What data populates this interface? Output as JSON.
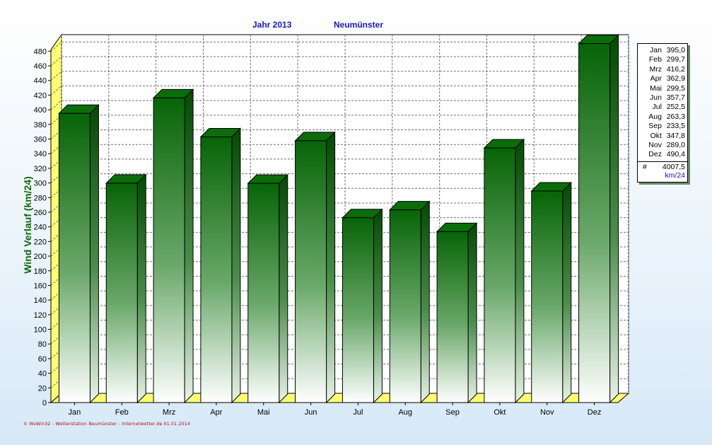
{
  "header": {
    "year_label": "Jahr  2013",
    "station": "Neumünster"
  },
  "footer": "© WsWin32 - Wetterstation Neumünster - Internetwetter.de 01.01.2014",
  "legend": {
    "hash": "#",
    "total": "4007,5",
    "unit": "km/24",
    "rows": [
      {
        "m": "Jan",
        "v": "395,0"
      },
      {
        "m": "Feb",
        "v": "299,7"
      },
      {
        "m": "Mrz",
        "v": "416,2"
      },
      {
        "m": "Apr",
        "v": "362,9"
      },
      {
        "m": "Mai",
        "v": "299,5"
      },
      {
        "m": "Jun",
        "v": "357,7"
      },
      {
        "m": "Jul",
        "v": "252,5"
      },
      {
        "m": "Aug",
        "v": "263,3"
      },
      {
        "m": "Sep",
        "v": "233,5"
      },
      {
        "m": "Okt",
        "v": "347,8"
      },
      {
        "m": "Nov",
        "v": "289,0"
      },
      {
        "m": "Dez",
        "v": "490,4"
      }
    ]
  },
  "chart_data": {
    "type": "bar",
    "title": "Jahr  2013",
    "subtitle": "Neumünster",
    "ylabel": "Wind Verlauf  (km/24)",
    "xlabel": "",
    "categories": [
      "Jan",
      "Feb",
      "Mrz",
      "Apr",
      "Mai",
      "Jun",
      "Jul",
      "Aug",
      "Sep",
      "Okt",
      "Nov",
      "Dez"
    ],
    "values": [
      395.0,
      299.7,
      416.2,
      362.9,
      299.5,
      357.7,
      252.5,
      263.3,
      233.5,
      347.8,
      289.0,
      490.4
    ],
    "ylim": [
      0,
      490
    ],
    "ytick_step": 20,
    "grid": true,
    "bar_top_color": "#0b6a0b",
    "bar_bottom_color": "#ffffff",
    "floor_color": "#ffff66"
  }
}
